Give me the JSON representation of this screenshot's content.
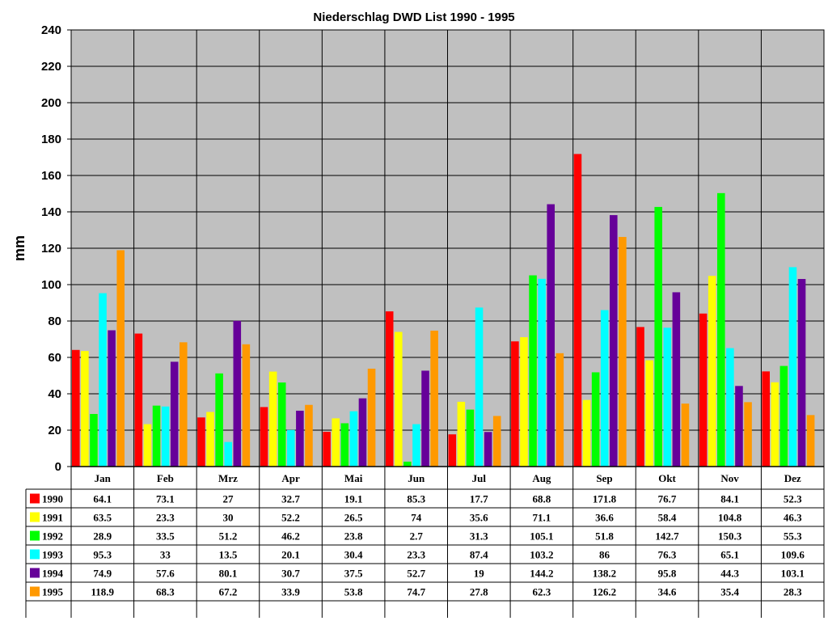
{
  "chart_data": {
    "type": "bar",
    "title": "Niederschlag DWD List 1990 - 1995",
    "xlabel": "",
    "ylabel": "mm",
    "ylim": [
      0,
      240
    ],
    "yticks": [
      0,
      20,
      40,
      60,
      80,
      100,
      120,
      140,
      160,
      180,
      200,
      220,
      240
    ],
    "grid": true,
    "plot_background": "#c0c0c0",
    "legend": "table-left",
    "categories": [
      "Jan",
      "Feb",
      "Mrz",
      "Apr",
      "Mai",
      "Jun",
      "Jul",
      "Aug",
      "Sep",
      "Okt",
      "Nov",
      "Dez"
    ],
    "series": [
      {
        "name": "1990",
        "color": "#ff0000",
        "values": [
          64.1,
          73.1,
          27,
          32.7,
          19.1,
          85.3,
          17.7,
          68.8,
          171.8,
          76.7,
          84.1,
          52.3
        ]
      },
      {
        "name": "1991",
        "color": "#ffff00",
        "values": [
          63.5,
          23.3,
          30,
          52.2,
          26.5,
          74,
          35.6,
          71.1,
          36.6,
          58.4,
          104.8,
          46.3
        ]
      },
      {
        "name": "1992",
        "color": "#00ff00",
        "values": [
          28.9,
          33.5,
          51.2,
          46.2,
          23.8,
          2.7,
          31.3,
          105.1,
          51.8,
          142.7,
          150.3,
          55.3
        ]
      },
      {
        "name": "1993",
        "color": "#00ffff",
        "values": [
          95.3,
          33,
          13.5,
          20.1,
          30.4,
          23.3,
          87.4,
          103.2,
          86,
          76.3,
          65.1,
          109.6
        ]
      },
      {
        "name": "1994",
        "color": "#660099",
        "values": [
          74.9,
          57.6,
          80.1,
          30.7,
          37.5,
          52.7,
          19,
          144.2,
          138.2,
          95.8,
          44.3,
          103.1
        ]
      },
      {
        "name": "1995",
        "color": "#ff9900",
        "values": [
          118.9,
          68.3,
          67.2,
          33.9,
          53.8,
          74.7,
          27.8,
          62.3,
          126.2,
          34.6,
          35.4,
          28.3
        ]
      }
    ]
  }
}
